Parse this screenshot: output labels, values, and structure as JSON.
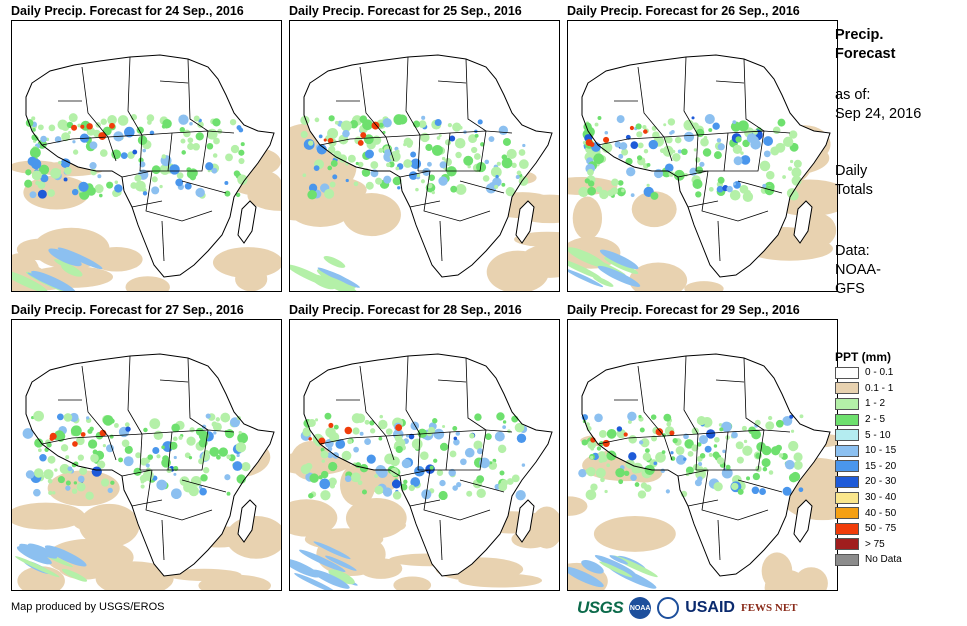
{
  "panels": [
    {
      "title": "Daily Precip. Forecast for 24  Sep., 2016"
    },
    {
      "title": "Daily Precip. Forecast for 25  Sep., 2016"
    },
    {
      "title": "Daily Precip. Forecast for 26  Sep., 2016"
    },
    {
      "title": "Daily Precip. Forecast for 27  Sep., 2016"
    },
    {
      "title": "Daily Precip. Forecast for 28  Sep., 2016"
    },
    {
      "title": "Daily Precip. Forecast for 29  Sep., 2016"
    }
  ],
  "side": {
    "title_line1": "Precip.",
    "title_line2": "Forecast",
    "asof_label": "as of:",
    "asof_date": "Sep 24, 2016",
    "totals_line1": "Daily",
    "totals_line2": "Totals",
    "data_line1": "Data:",
    "data_line2": "NOAA-",
    "data_line3": "GFS"
  },
  "legend": {
    "title": "PPT (mm)",
    "items": [
      {
        "label": "0 - 0.1",
        "color": "#ffffff"
      },
      {
        "label": "0.1 - 1",
        "color": "#e8d2b0"
      },
      {
        "label": "1 - 2",
        "color": "#b4f0a8"
      },
      {
        "label": "2 - 5",
        "color": "#6ee06e"
      },
      {
        "label": "5 - 10",
        "color": "#b4ecf0"
      },
      {
        "label": "10 - 15",
        "color": "#8cc0f0"
      },
      {
        "label": "15 - 20",
        "color": "#4a96ec"
      },
      {
        "label": "20 - 30",
        "color": "#1e5ad8"
      },
      {
        "label": "30 - 40",
        "color": "#fae68c"
      },
      {
        "label": "40 - 50",
        "color": "#f5a014"
      },
      {
        "label": "50 - 75",
        "color": "#f03c0a"
      },
      {
        "label": "> 75",
        "color": "#a01e1e"
      },
      {
        "label": "No Data",
        "color": "#8c8c8c"
      }
    ]
  },
  "credit": "Map produced by USGS/EROS",
  "logos": {
    "usgs": "USGS",
    "noaa": "NOAA",
    "usaid": "USAID",
    "fews": "FEWS NET"
  }
}
